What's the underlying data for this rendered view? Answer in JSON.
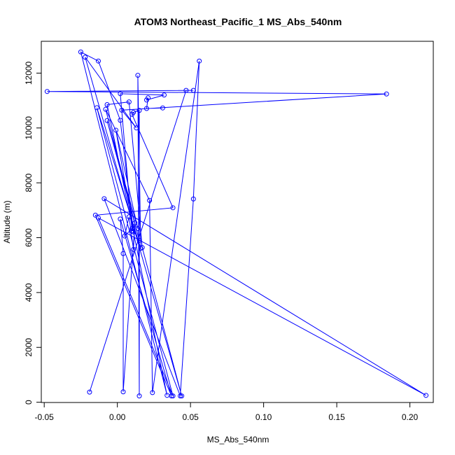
{
  "chart_data": {
    "type": "line",
    "title": "ATOM3 Northeast_Pacific_1 MS_Abs_540nm",
    "xlabel": "MS_Abs_540nm",
    "ylabel": "Altitude (m)",
    "xlim": [
      -0.052,
      0.216
    ],
    "ylim": [
      -10,
      13160
    ],
    "xticks": [
      -0.05,
      0.0,
      0.05,
      0.1,
      0.15,
      0.2
    ],
    "xtick_labels": [
      "-0.05",
      "0.00",
      "0.05",
      "0.10",
      "0.15",
      "0.20"
    ],
    "yticks": [
      0,
      2000,
      4000,
      6000,
      8000,
      10000,
      12000
    ],
    "ytick_labels": [
      "0",
      "2000",
      "4000",
      "6000",
      "8000",
      "10000",
      "12000"
    ],
    "grid": false,
    "series": [
      {
        "color": "#0000ff",
        "marker": "open-circle",
        "points": [
          {
            "x": -0.019,
            "y": 370
          },
          {
            "x": 0.047,
            "y": 11370
          },
          {
            "x": 0.052,
            "y": 11370
          },
          {
            "x": -0.048,
            "y": 11330
          },
          {
            "x": 0.184,
            "y": 11240
          },
          {
            "x": 0.003,
            "y": 10650
          },
          {
            "x": 0.013,
            "y": 10000
          },
          {
            "x": -0.022,
            "y": 12580
          },
          {
            "x": 0.044,
            "y": 230
          },
          {
            "x": 0.017,
            "y": 5640
          },
          {
            "x": 0.008,
            "y": 10950
          },
          {
            "x": -0.007,
            "y": 10850
          },
          {
            "x": 0.034,
            "y": 250
          },
          {
            "x": -0.025,
            "y": 12770
          },
          {
            "x": -0.013,
            "y": 12440
          },
          {
            "x": 0.002,
            "y": 10280
          },
          {
            "x": 0.011,
            "y": 6210
          },
          {
            "x": -0.001,
            "y": 9920
          },
          {
            "x": 0.014,
            "y": 6330
          },
          {
            "x": -0.007,
            "y": 10270
          },
          {
            "x": 0.015,
            "y": 5900
          },
          {
            "x": -0.008,
            "y": 10680
          },
          {
            "x": 0.022,
            "y": 7360
          },
          {
            "x": 0.024,
            "y": 350
          },
          {
            "x": 0.056,
            "y": 12440
          },
          {
            "x": 0.052,
            "y": 7410
          },
          {
            "x": 0.043,
            "y": 230
          },
          {
            "x": -0.009,
            "y": 7420
          },
          {
            "x": 0.211,
            "y": 250
          },
          {
            "x": -0.013,
            "y": 6720
          },
          {
            "x": 0.038,
            "y": 230
          },
          {
            "x": -0.014,
            "y": 10740
          },
          {
            "x": 0.016,
            "y": 5610
          },
          {
            "x": 0.014,
            "y": 11920
          },
          {
            "x": 0.015,
            "y": 230
          },
          {
            "x": 0.015,
            "y": 10640
          },
          {
            "x": 0.011,
            "y": 10570
          },
          {
            "x": 0.01,
            "y": 10500
          },
          {
            "x": 0.038,
            "y": 7090
          },
          {
            "x": -0.015,
            "y": 6820
          },
          {
            "x": 0.037,
            "y": 230
          },
          {
            "x": 0.002,
            "y": 6680
          },
          {
            "x": 0.004,
            "y": 5420
          },
          {
            "x": 0.004,
            "y": 380
          },
          {
            "x": 0.012,
            "y": 6540
          },
          {
            "x": 0.011,
            "y": 5570
          },
          {
            "x": 0.008,
            "y": 6760
          },
          {
            "x": 0.005,
            "y": 6060
          },
          {
            "x": 0.01,
            "y": 6330
          },
          {
            "x": 0.01,
            "y": 6250
          },
          {
            "x": 0.002,
            "y": 11250
          },
          {
            "x": 0.032,
            "y": 11200
          },
          {
            "x": 0.02,
            "y": 11020
          },
          {
            "x": 0.021,
            "y": 11100
          },
          {
            "x": 0.02,
            "y": 10710
          },
          {
            "x": 0.031,
            "y": 10730
          }
        ]
      }
    ]
  }
}
